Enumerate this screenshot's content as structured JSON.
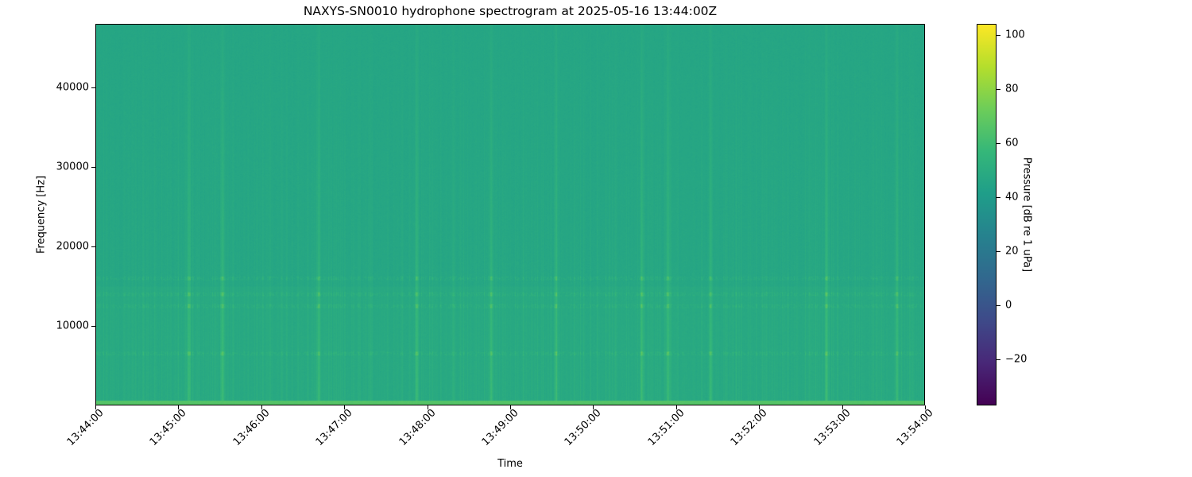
{
  "chart_data": {
    "type": "heatmap",
    "title": "NAXYS-SN0010 hydrophone spectrogram at 2025-05-16 13:44:00Z",
    "xlabel": "Time",
    "ylabel": "Frequency [Hz]",
    "colorbar_label": "Pressure [dB re 1 uPa]",
    "colormap": "viridis",
    "xlim": [
      "13:44:00",
      "13:54:00"
    ],
    "ylim": [
      0,
      48000
    ],
    "clim": [
      -37,
      104
    ],
    "x_ticks": [
      "13:44:00",
      "13:45:00",
      "13:46:00",
      "13:47:00",
      "13:48:00",
      "13:49:00",
      "13:50:00",
      "13:51:00",
      "13:52:00",
      "13:53:00",
      "13:54:00"
    ],
    "y_ticks": [
      10000,
      20000,
      30000,
      40000
    ],
    "y_tick_labels": [
      "10000",
      "20000",
      "30000",
      "40000"
    ],
    "c_ticks": [
      -20,
      0,
      20,
      40,
      60,
      80,
      100
    ],
    "c_tick_labels": [
      "−20",
      "0",
      "20",
      "40",
      "60",
      "80",
      "100"
    ],
    "background_level_db": 46,
    "low_frequency_band": {
      "max_hz": 500,
      "level_db": 66
    },
    "tonal_bands_hz": [
      6500,
      12500,
      14000,
      16000
    ],
    "transient_events": [
      "13:45:07",
      "13:45:31",
      "13:46:41",
      "13:47:52",
      "13:48:46",
      "13:49:33",
      "13:50:35",
      "13:50:54",
      "13:51:25",
      "13:52:49",
      "13:53:40"
    ]
  }
}
